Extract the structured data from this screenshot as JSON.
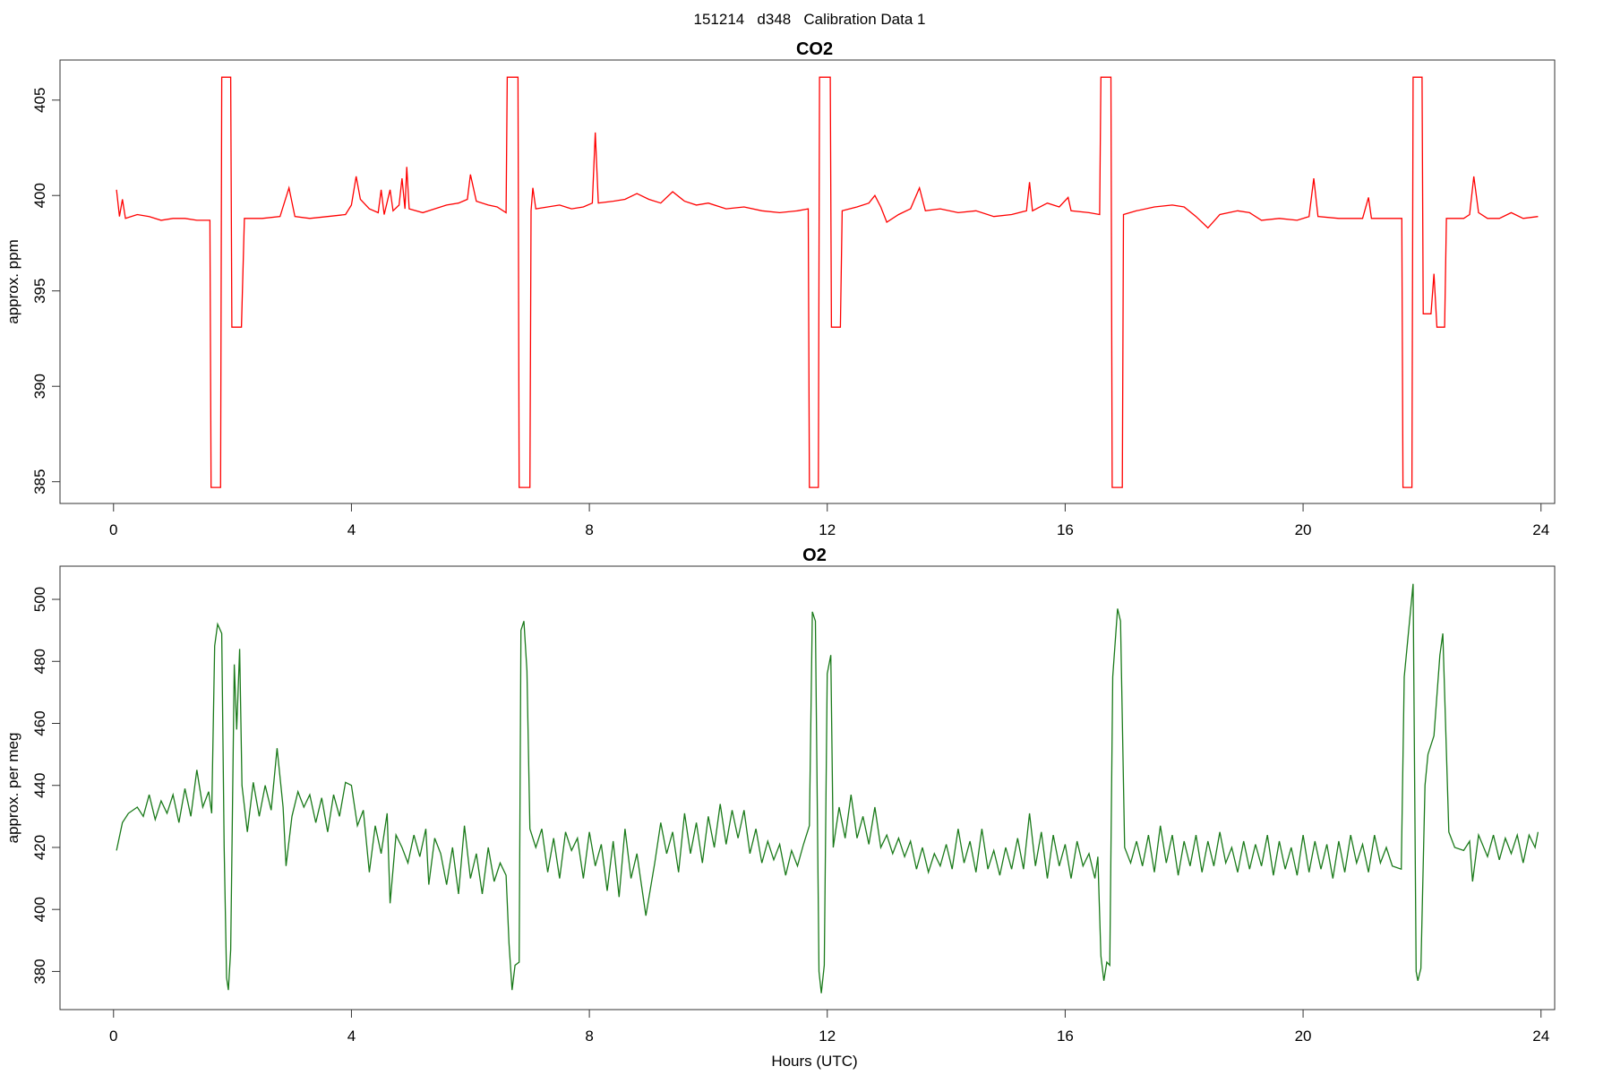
{
  "title": "151214   d348   Calibration Data 1",
  "chart_data": [
    {
      "type": "line",
      "title": "CO2",
      "ylabel": "approx. ppm",
      "color": "#ff0000",
      "xlim": [
        -0.9,
        24.23
      ],
      "ylim": [
        383.86,
        407.1
      ],
      "xticks": [
        0,
        4,
        8,
        12,
        16,
        20,
        24
      ],
      "yticks": [
        385,
        390,
        395,
        400,
        405
      ],
      "x": [
        0.05,
        0.1,
        0.15,
        0.2,
        0.4,
        0.6,
        0.8,
        1.0,
        1.2,
        1.4,
        1.62,
        1.64,
        1.8,
        1.82,
        1.97,
        1.99,
        2.15,
        2.2,
        2.5,
        2.8,
        2.95,
        3.05,
        3.3,
        3.6,
        3.9,
        4.0,
        4.08,
        4.15,
        4.3,
        4.45,
        4.5,
        4.55,
        4.65,
        4.7,
        4.8,
        4.85,
        4.9,
        4.93,
        4.97,
        5.2,
        5.4,
        5.6,
        5.8,
        5.95,
        6.0,
        6.1,
        6.3,
        6.45,
        6.6,
        6.62,
        6.8,
        6.82,
        7.0,
        7.02,
        7.05,
        7.1,
        7.3,
        7.5,
        7.7,
        7.9,
        8.05,
        8.1,
        8.15,
        8.4,
        8.6,
        8.8,
        9.0,
        9.2,
        9.4,
        9.6,
        9.8,
        10.0,
        10.3,
        10.6,
        10.9,
        11.2,
        11.5,
        11.68,
        11.7,
        11.85,
        11.87,
        12.05,
        12.07,
        12.22,
        12.25,
        12.5,
        12.7,
        12.8,
        12.9,
        13.0,
        13.2,
        13.4,
        13.55,
        13.65,
        13.9,
        14.2,
        14.5,
        14.8,
        15.1,
        15.35,
        15.4,
        15.45,
        15.7,
        15.9,
        16.05,
        16.1,
        16.4,
        16.58,
        16.6,
        16.77,
        16.79,
        16.96,
        16.98,
        17.2,
        17.5,
        17.8,
        18.0,
        18.2,
        18.4,
        18.6,
        18.9,
        19.1,
        19.3,
        19.6,
        19.9,
        20.1,
        20.18,
        20.25,
        20.6,
        21.0,
        21.1,
        21.15,
        21.5,
        21.66,
        21.68,
        21.83,
        21.85,
        22.0,
        22.02,
        22.15,
        22.2,
        22.25,
        22.38,
        22.41,
        22.7,
        22.8,
        22.87,
        22.95,
        23.1,
        23.3,
        23.5,
        23.7,
        23.95
      ],
      "values": [
        400.3,
        398.9,
        399.8,
        398.8,
        399.0,
        398.9,
        398.7,
        398.8,
        398.8,
        398.7,
        398.7,
        384.7,
        384.7,
        406.2,
        406.2,
        393.1,
        393.1,
        398.8,
        398.8,
        398.9,
        400.4,
        398.9,
        398.8,
        398.9,
        399.0,
        399.5,
        401.0,
        399.8,
        399.3,
        399.1,
        400.3,
        399.0,
        400.3,
        399.2,
        399.5,
        400.9,
        399.3,
        401.5,
        399.3,
        399.1,
        399.3,
        399.5,
        399.6,
        399.8,
        401.1,
        399.7,
        399.5,
        399.4,
        399.1,
        406.2,
        406.2,
        384.7,
        384.7,
        399.2,
        400.4,
        399.3,
        399.4,
        399.5,
        399.3,
        399.4,
        399.6,
        403.3,
        399.6,
        399.7,
        399.8,
        400.1,
        399.8,
        399.6,
        400.2,
        399.7,
        399.5,
        399.6,
        399.3,
        399.4,
        399.2,
        399.1,
        399.2,
        399.3,
        384.7,
        384.7,
        406.2,
        406.2,
        393.1,
        393.1,
        399.2,
        399.4,
        399.6,
        400.0,
        399.4,
        398.6,
        399.0,
        399.3,
        400.4,
        399.2,
        399.3,
        399.1,
        399.2,
        398.9,
        399.0,
        399.2,
        400.7,
        399.2,
        399.6,
        399.4,
        399.9,
        399.2,
        399.1,
        399.0,
        406.2,
        406.2,
        384.7,
        384.7,
        399.0,
        399.2,
        399.4,
        399.5,
        399.4,
        398.9,
        398.3,
        399.0,
        399.2,
        399.1,
        398.7,
        398.8,
        398.7,
        398.9,
        400.9,
        398.9,
        398.8,
        398.8,
        399.9,
        398.8,
        398.8,
        398.8,
        384.7,
        384.7,
        406.2,
        406.2,
        393.8,
        393.8,
        395.9,
        393.1,
        393.1,
        398.8,
        398.8,
        399.0,
        401.0,
        399.1,
        398.8,
        398.8,
        399.1,
        398.8,
        398.9
      ]
    },
    {
      "type": "line",
      "title": "O2",
      "ylabel": "approx. per meg",
      "xlabel": "Hours (UTC)",
      "color": "#1a7a1a",
      "xlim": [
        -0.9,
        24.23
      ],
      "ylim": [
        367.7,
        510.7
      ],
      "xticks": [
        0,
        4,
        8,
        12,
        16,
        20,
        24
      ],
      "yticks": [
        380,
        400,
        420,
        440,
        460,
        480,
        500
      ],
      "x": [
        0.05,
        0.15,
        0.25,
        0.4,
        0.5,
        0.6,
        0.7,
        0.8,
        0.9,
        1.0,
        1.1,
        1.2,
        1.3,
        1.4,
        1.5,
        1.6,
        1.65,
        1.7,
        1.75,
        1.82,
        1.86,
        1.9,
        1.93,
        1.97,
        2.03,
        2.07,
        2.12,
        2.16,
        2.25,
        2.35,
        2.45,
        2.55,
        2.65,
        2.75,
        2.85,
        2.9,
        3.0,
        3.1,
        3.2,
        3.3,
        3.4,
        3.5,
        3.6,
        3.7,
        3.8,
        3.9,
        4.0,
        4.1,
        4.2,
        4.3,
        4.4,
        4.5,
        4.6,
        4.65,
        4.75,
        4.85,
        4.95,
        5.05,
        5.15,
        5.25,
        5.3,
        5.4,
        5.5,
        5.6,
        5.7,
        5.8,
        5.9,
        6.0,
        6.1,
        6.2,
        6.3,
        6.4,
        6.5,
        6.6,
        6.65,
        6.7,
        6.75,
        6.82,
        6.85,
        6.9,
        6.95,
        7.0,
        7.1,
        7.2,
        7.3,
        7.4,
        7.5,
        7.6,
        7.7,
        7.8,
        7.9,
        8.0,
        8.1,
        8.2,
        8.3,
        8.4,
        8.5,
        8.6,
        8.7,
        8.8,
        8.95,
        9.1,
        9.2,
        9.3,
        9.4,
        9.5,
        9.6,
        9.7,
        9.8,
        9.9,
        10.0,
        10.1,
        10.2,
        10.3,
        10.4,
        10.5,
        10.6,
        10.7,
        10.8,
        10.9,
        11.0,
        11.1,
        11.2,
        11.3,
        11.4,
        11.5,
        11.6,
        11.7,
        11.75,
        11.8,
        11.86,
        11.9,
        11.95,
        12.0,
        12.06,
        12.1,
        12.2,
        12.3,
        12.4,
        12.5,
        12.6,
        12.7,
        12.8,
        12.9,
        13.0,
        13.1,
        13.2,
        13.3,
        13.4,
        13.5,
        13.6,
        13.7,
        13.8,
        13.9,
        14.0,
        14.1,
        14.2,
        14.3,
        14.4,
        14.5,
        14.6,
        14.7,
        14.8,
        14.9,
        15.0,
        15.1,
        15.2,
        15.3,
        15.4,
        15.5,
        15.6,
        15.7,
        15.8,
        15.9,
        16.0,
        16.1,
        16.2,
        16.3,
        16.4,
        16.5,
        16.55,
        16.6,
        16.65,
        16.7,
        16.75,
        16.8,
        16.88,
        16.93,
        17.0,
        17.1,
        17.2,
        17.3,
        17.4,
        17.5,
        17.6,
        17.7,
        17.8,
        17.9,
        18.0,
        18.1,
        18.2,
        18.3,
        18.4,
        18.5,
        18.6,
        18.7,
        18.8,
        18.9,
        19.0,
        19.1,
        19.2,
        19.3,
        19.4,
        19.5,
        19.6,
        19.7,
        19.8,
        19.9,
        20.0,
        20.1,
        20.2,
        20.3,
        20.4,
        20.5,
        20.6,
        20.7,
        20.8,
        20.9,
        21.0,
        21.1,
        21.2,
        21.3,
        21.4,
        21.5,
        21.65,
        21.7,
        21.8,
        21.85,
        21.9,
        21.93,
        21.98,
        22.05,
        22.1,
        22.2,
        22.3,
        22.35,
        22.45,
        22.55,
        22.7,
        22.8,
        22.85,
        22.95,
        23.1,
        23.2,
        23.3,
        23.4,
        23.5,
        23.6,
        23.7,
        23.8,
        23.9,
        23.95
      ],
      "values": [
        419,
        428,
        431,
        433,
        430,
        437,
        429,
        435,
        431,
        437,
        428,
        439,
        430,
        445,
        433,
        438,
        431,
        485,
        492,
        489,
        420,
        378,
        374,
        387,
        479,
        458,
        484,
        440,
        425,
        441,
        430,
        440,
        432,
        452,
        433,
        414,
        430,
        438,
        433,
        437,
        428,
        436,
        425,
        437,
        430,
        441,
        440,
        427,
        432,
        412,
        427,
        418,
        431,
        402,
        424,
        420,
        415,
        424,
        417,
        426,
        408,
        423,
        418,
        408,
        420,
        405,
        427,
        410,
        418,
        405,
        420,
        409,
        415,
        411,
        389,
        374,
        382,
        383,
        490,
        493,
        477,
        426,
        420,
        426,
        412,
        423,
        410,
        425,
        419,
        423,
        410,
        425,
        414,
        421,
        406,
        422,
        404,
        426,
        410,
        418,
        398,
        415,
        428,
        418,
        425,
        412,
        431,
        418,
        428,
        415,
        430,
        420,
        434,
        421,
        432,
        423,
        432,
        418,
        426,
        415,
        422,
        416,
        421,
        411,
        419,
        414,
        421,
        427,
        496,
        493,
        380,
        373,
        382,
        476,
        482,
        420,
        433,
        423,
        437,
        423,
        430,
        421,
        433,
        420,
        424,
        418,
        423,
        417,
        422,
        413,
        420,
        412,
        418,
        414,
        421,
        413,
        426,
        415,
        422,
        412,
        426,
        413,
        419,
        411,
        420,
        413,
        423,
        413,
        431,
        414,
        425,
        410,
        424,
        414,
        421,
        410,
        422,
        414,
        418,
        410,
        417,
        385,
        377,
        383,
        382,
        475,
        497,
        493,
        420,
        415,
        422,
        414,
        424,
        412,
        427,
        415,
        424,
        411,
        422,
        414,
        424,
        412,
        422,
        414,
        425,
        415,
        420,
        412,
        422,
        413,
        421,
        414,
        424,
        411,
        422,
        413,
        420,
        411,
        424,
        412,
        422,
        413,
        421,
        410,
        422,
        412,
        424,
        415,
        421,
        412,
        424,
        415,
        420,
        414,
        413,
        475,
        495,
        505,
        380,
        377,
        381,
        440,
        450,
        456,
        482,
        489,
        425,
        420,
        419,
        422,
        409,
        424,
        417,
        424,
        416,
        423,
        418,
        424,
        415,
        424,
        420,
        425
      ]
    }
  ]
}
